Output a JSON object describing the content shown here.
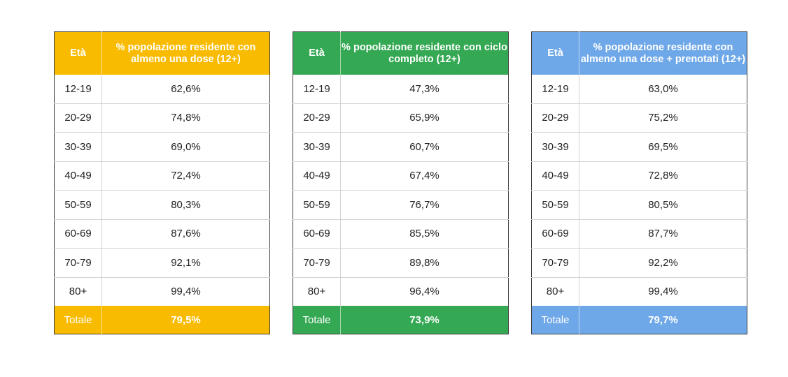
{
  "colors": {
    "table_1_accent": "#f9bb00",
    "table_2_accent": "#34a853",
    "table_3_accent": "#6fa8e8"
  },
  "tables": [
    {
      "age_header": "Età",
      "value_header": "% popolazione residente con almeno una dose (12+)",
      "rows": [
        {
          "age": "12-19",
          "value": "62,6%"
        },
        {
          "age": "20-29",
          "value": "74,8%"
        },
        {
          "age": "30-39",
          "value": "69,0%"
        },
        {
          "age": "40-49",
          "value": "72,4%"
        },
        {
          "age": "50-59",
          "value": "80,3%"
        },
        {
          "age": "60-69",
          "value": "87,6%"
        },
        {
          "age": "70-79",
          "value": "92,1%"
        },
        {
          "age": "80+",
          "value": "99,4%"
        }
      ],
      "total_label": "Totale",
      "total_value": "79,5%"
    },
    {
      "age_header": "Età",
      "value_header": "% popolazione residente con ciclo completo (12+)",
      "rows": [
        {
          "age": "12-19",
          "value": "47,3%"
        },
        {
          "age": "20-29",
          "value": "65,9%"
        },
        {
          "age": "30-39",
          "value": "60,7%"
        },
        {
          "age": "40-49",
          "value": "67,4%"
        },
        {
          "age": "50-59",
          "value": "76,7%"
        },
        {
          "age": "60-69",
          "value": "85,5%"
        },
        {
          "age": "70-79",
          "value": "89,8%"
        },
        {
          "age": "80+",
          "value": "96,4%"
        }
      ],
      "total_label": "Totale",
      "total_value": "73,9%"
    },
    {
      "age_header": "Età",
      "value_header": "% popolazione residente con almeno una dose + prenotati (12+)",
      "rows": [
        {
          "age": "12-19",
          "value": "63,0%"
        },
        {
          "age": "20-29",
          "value": "75,2%"
        },
        {
          "age": "30-39",
          "value": "69,5%"
        },
        {
          "age": "40-49",
          "value": "72,8%"
        },
        {
          "age": "50-59",
          "value": "80,5%"
        },
        {
          "age": "60-69",
          "value": "87,7%"
        },
        {
          "age": "70-79",
          "value": "92,2%"
        },
        {
          "age": "80+",
          "value": "99,4%"
        }
      ],
      "total_label": "Totale",
      "total_value": "79,7%"
    }
  ]
}
